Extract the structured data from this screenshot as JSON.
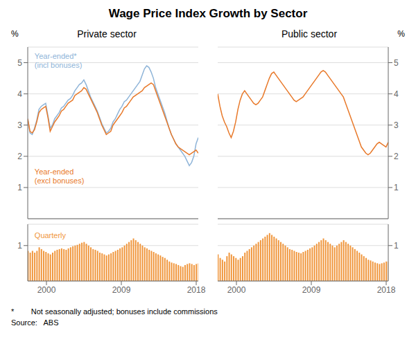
{
  "title": "Wage Price Index Growth by Sector",
  "annotations": [
    "*        Not seasonally adjusted; bonuses include commissions",
    "Source:   ABS"
  ],
  "chart_data": [
    {
      "type": "line",
      "title": "Private sector",
      "ylabel": "%",
      "x": [
        1997.75,
        1998.0197,
        1998.2895,
        1998.5592,
        1998.8289,
        1999.0987,
        1999.3684,
        1999.6382,
        1999.9079,
        2000.1776,
        2000.4474,
        2000.7171,
        2000.9868,
        2001.2566,
        2001.5263,
        2001.7961,
        2002.0658,
        2002.3355,
        2002.6053,
        2002.875,
        2003.1447,
        2003.4145,
        2003.6842,
        2003.9539,
        2004.2237,
        2004.4934,
        2004.7632,
        2005.0329,
        2005.3026,
        2005.5724,
        2005.8421,
        2006.1118,
        2006.3816,
        2006.6513,
        2006.9211,
        2007.1908,
        2007.4605,
        2007.7303,
        2008,
        2008.2697,
        2008.5395,
        2008.8092,
        2009.0789,
        2009.3487,
        2009.6184,
        2009.8882,
        2010.1579,
        2010.4276,
        2010.6974,
        2010.9671,
        2011.2368,
        2011.5066,
        2011.7763,
        2012.0461,
        2012.3158,
        2012.5855,
        2012.8553,
        2013.125,
        2013.3947,
        2013.6645,
        2013.9342,
        2014.2039,
        2014.4737,
        2014.7434,
        2015.0132,
        2015.2829,
        2015.5526,
        2015.8224,
        2016.0921,
        2016.3618,
        2016.6316,
        2016.9013,
        2017.1711,
        2017.4408,
        2017.7105,
        2017.9803,
        2018.25
      ],
      "series": [
        {
          "name": "Year-ended*\n(incl bonuses)",
          "color": "#8EB4D8",
          "values": [
            3.2,
            2.75,
            2.7,
            2.9,
            3.15,
            3.5,
            3.6,
            3.65,
            3.7,
            3.3,
            2.9,
            3.0,
            3.2,
            3.3,
            3.4,
            3.55,
            3.6,
            3.7,
            3.8,
            3.85,
            3.95,
            4.1,
            4.2,
            4.3,
            4.35,
            4.45,
            4.3,
            4.1,
            3.9,
            3.75,
            3.6,
            3.45,
            3.25,
            3.05,
            2.9,
            2.75,
            2.8,
            2.9,
            3.1,
            3.2,
            3.35,
            3.5,
            3.6,
            3.75,
            3.8,
            3.9,
            4.0,
            4.1,
            4.2,
            4.3,
            4.4,
            4.6,
            4.8,
            4.9,
            4.85,
            4.7,
            4.5,
            4.2,
            4.0,
            3.8,
            3.6,
            3.4,
            3.15,
            2.9,
            2.7,
            2.55,
            2.4,
            2.3,
            2.2,
            2.1,
            2.0,
            1.85,
            1.7,
            1.8,
            2.0,
            2.4,
            2.6
          ]
        },
        {
          "name": "Year-ended\n(excl bonuses)",
          "color": "#E8792A",
          "values": [
            3.2,
            2.8,
            2.75,
            2.85,
            3.1,
            3.4,
            3.5,
            3.55,
            3.6,
            3.25,
            2.8,
            2.95,
            3.1,
            3.2,
            3.3,
            3.45,
            3.5,
            3.6,
            3.7,
            3.75,
            3.8,
            3.95,
            4.0,
            4.05,
            4.1,
            4.2,
            4.15,
            4.0,
            3.85,
            3.7,
            3.55,
            3.4,
            3.2,
            3.0,
            2.85,
            2.7,
            2.75,
            2.8,
            3.0,
            3.1,
            3.2,
            3.3,
            3.4,
            3.55,
            3.6,
            3.7,
            3.8,
            3.9,
            3.95,
            4.0,
            4.05,
            4.1,
            4.2,
            4.25,
            4.3,
            4.35,
            4.3,
            4.1,
            3.9,
            3.7,
            3.5,
            3.3,
            3.1,
            2.9,
            2.7,
            2.55,
            2.4,
            2.3,
            2.25,
            2.2,
            2.15,
            2.1,
            2.05,
            2.1,
            2.15,
            2.2,
            2.1
          ]
        }
      ],
      "xlim": [
        1997.75,
        2018.25
      ],
      "ylim": [
        0,
        5.5
      ],
      "yticks": [
        1,
        2,
        3,
        4,
        5
      ],
      "grid": true,
      "tick_labels": "y"
    },
    {
      "type": "bar",
      "annotations": [
        "Quarterly"
      ],
      "color": "#F0963C",
      "x": [
        1997.75,
        1998.0197,
        1998.2895,
        1998.5592,
        1998.8289,
        1999.0987,
        1999.3684,
        1999.6382,
        1999.9079,
        2000.1776,
        2000.4474,
        2000.7171,
        2000.9868,
        2001.2566,
        2001.5263,
        2001.7961,
        2002.0658,
        2002.3355,
        2002.6053,
        2002.875,
        2003.1447,
        2003.4145,
        2003.6842,
        2003.9539,
        2004.2237,
        2004.4934,
        2004.7632,
        2005.0329,
        2005.3026,
        2005.5724,
        2005.8421,
        2006.1118,
        2006.3816,
        2006.6513,
        2006.9211,
        2007.1908,
        2007.4605,
        2007.7303,
        2008,
        2008.2697,
        2008.5395,
        2008.8092,
        2009.0789,
        2009.3487,
        2009.6184,
        2009.8882,
        2010.1579,
        2010.4276,
        2010.6974,
        2010.9671,
        2011.2368,
        2011.5066,
        2011.7763,
        2012.0461,
        2012.3158,
        2012.5855,
        2012.8553,
        2013.125,
        2013.3947,
        2013.6645,
        2013.9342,
        2014.2039,
        2014.4737,
        2014.7434,
        2015.0132,
        2015.2829,
        2015.5526,
        2015.8224,
        2016.0921,
        2016.3618,
        2016.6316,
        2016.9013,
        2017.1711,
        2017.4408,
        2017.7105,
        2017.9803,
        2018.25
      ],
      "values": [
        0.85,
        0.8,
        0.85,
        0.8,
        0.85,
        0.95,
        0.9,
        0.85,
        0.82,
        0.78,
        0.75,
        0.8,
        0.85,
        0.88,
        0.9,
        0.92,
        0.9,
        0.88,
        0.92,
        0.95,
        0.98,
        1.0,
        1.02,
        1.05,
        1.08,
        1.1,
        1.05,
        1.0,
        0.95,
        0.9,
        0.88,
        0.85,
        0.8,
        0.78,
        0.75,
        0.72,
        0.75,
        0.78,
        0.82,
        0.85,
        0.88,
        0.92,
        0.95,
        1.0,
        1.05,
        1.1,
        1.15,
        1.2,
        1.15,
        1.1,
        1.05,
        1.0,
        0.95,
        0.92,
        0.88,
        0.85,
        0.82,
        0.78,
        0.75,
        0.72,
        0.68,
        0.65,
        0.6,
        0.55,
        0.52,
        0.5,
        0.48,
        0.45,
        0.42,
        0.4,
        0.45,
        0.48,
        0.5,
        0.48,
        0.45,
        0.48,
        0.5
      ],
      "xlim": [
        1997.75,
        2018.25
      ],
      "xticks": [
        2000,
        2009,
        2018
      ],
      "ylim": [
        0,
        1.6
      ],
      "yticks": [
        1
      ],
      "grid": true
    },
    {
      "type": "line",
      "title": "Public sector",
      "ylabel": "%",
      "color": "#E8792A",
      "x": [
        1997.75,
        1998.0197,
        1998.2895,
        1998.5592,
        1998.8289,
        1999.0987,
        1999.3684,
        1999.6382,
        1999.9079,
        2000.1776,
        2000.4474,
        2000.7171,
        2000.9868,
        2001.2566,
        2001.5263,
        2001.7961,
        2002.0658,
        2002.3355,
        2002.6053,
        2002.875,
        2003.1447,
        2003.4145,
        2003.6842,
        2003.9539,
        2004.2237,
        2004.4934,
        2004.7632,
        2005.0329,
        2005.3026,
        2005.5724,
        2005.8421,
        2006.1118,
        2006.3816,
        2006.6513,
        2006.9211,
        2007.1908,
        2007.4605,
        2007.7303,
        2008,
        2008.2697,
        2008.5395,
        2008.8092,
        2009.0789,
        2009.3487,
        2009.6184,
        2009.8882,
        2010.1579,
        2010.4276,
        2010.6974,
        2010.9671,
        2011.2368,
        2011.5066,
        2011.7763,
        2012.0461,
        2012.3158,
        2012.5855,
        2012.8553,
        2013.125,
        2013.3947,
        2013.6645,
        2013.9342,
        2014.2039,
        2014.4737,
        2014.7434,
        2015.0132,
        2015.2829,
        2015.5526,
        2015.8224,
        2016.0921,
        2016.3618,
        2016.6316,
        2016.9013,
        2017.1711,
        2017.4408,
        2017.7105,
        2017.9803,
        2018.25
      ],
      "values": [
        4.0,
        3.6,
        3.3,
        3.1,
        2.95,
        2.75,
        2.6,
        2.8,
        3.1,
        3.5,
        3.8,
        4.0,
        4.1,
        4.0,
        3.9,
        3.8,
        3.7,
        3.65,
        3.7,
        3.8,
        3.9,
        4.1,
        4.3,
        4.5,
        4.65,
        4.7,
        4.6,
        4.5,
        4.4,
        4.3,
        4.2,
        4.1,
        4.0,
        3.9,
        3.8,
        3.75,
        3.8,
        3.85,
        3.9,
        4.0,
        4.1,
        4.2,
        4.3,
        4.4,
        4.5,
        4.6,
        4.7,
        4.75,
        4.7,
        4.6,
        4.5,
        4.4,
        4.3,
        4.2,
        4.1,
        4.0,
        3.9,
        3.7,
        3.5,
        3.3,
        3.1,
        2.9,
        2.7,
        2.5,
        2.3,
        2.2,
        2.1,
        2.05,
        2.1,
        2.2,
        2.3,
        2.4,
        2.45,
        2.4,
        2.35,
        2.3,
        2.45
      ],
      "xlim": [
        1997.75,
        2018.25
      ],
      "ylim": [
        0,
        5.5
      ],
      "yticks": [
        1,
        2,
        3,
        4,
        5
      ],
      "grid": true,
      "tick_labels": "y"
    },
    {
      "type": "bar",
      "color": "#F0963C",
      "x": [
        1997.75,
        1998.0197,
        1998.2895,
        1998.5592,
        1998.8289,
        1999.0987,
        1999.3684,
        1999.6382,
        1999.9079,
        2000.1776,
        2000.4474,
        2000.7171,
        2000.9868,
        2001.2566,
        2001.5263,
        2001.7961,
        2002.0658,
        2002.3355,
        2002.6053,
        2002.875,
        2003.1447,
        2003.4145,
        2003.6842,
        2003.9539,
        2004.2237,
        2004.4934,
        2004.7632,
        2005.0329,
        2005.3026,
        2005.5724,
        2005.8421,
        2006.1118,
        2006.3816,
        2006.6513,
        2006.9211,
        2007.1908,
        2007.4605,
        2007.7303,
        2008,
        2008.2697,
        2008.5395,
        2008.8092,
        2009.0789,
        2009.3487,
        2009.6184,
        2009.8882,
        2010.1579,
        2010.4276,
        2010.6974,
        2010.9671,
        2011.2368,
        2011.5066,
        2011.7763,
        2012.0461,
        2012.3158,
        2012.5855,
        2012.8553,
        2013.125,
        2013.3947,
        2013.6645,
        2013.9342,
        2014.2039,
        2014.4737,
        2014.7434,
        2015.0132,
        2015.2829,
        2015.5526,
        2015.8224,
        2016.0921,
        2016.3618,
        2016.6316,
        2016.9013,
        2017.1711,
        2017.4408,
        2017.7105,
        2017.9803,
        2018.25
      ],
      "values": [
        0.75,
        0.65,
        0.6,
        0.55,
        0.7,
        0.8,
        0.75,
        0.7,
        0.65,
        0.6,
        0.65,
        0.7,
        0.8,
        0.85,
        0.9,
        0.95,
        1.0,
        1.05,
        1.1,
        1.15,
        1.2,
        1.25,
        1.3,
        1.35,
        1.3,
        1.25,
        1.2,
        1.15,
        1.1,
        1.05,
        1.0,
        0.95,
        0.9,
        0.88,
        0.85,
        0.82,
        0.8,
        0.78,
        0.82,
        0.85,
        0.88,
        0.92,
        0.95,
        1.0,
        1.05,
        1.1,
        1.15,
        1.2,
        1.15,
        1.1,
        1.05,
        1.0,
        0.95,
        1.0,
        1.05,
        1.1,
        1.15,
        1.1,
        1.05,
        1.0,
        0.95,
        0.9,
        0.85,
        0.8,
        0.75,
        0.7,
        0.65,
        0.6,
        0.58,
        0.55,
        0.52,
        0.5,
        0.48,
        0.5,
        0.52,
        0.55,
        0.55
      ],
      "xlim": [
        1997.75,
        2018.25
      ],
      "xticks": [
        2000,
        2009,
        2018
      ],
      "ylim": [
        0,
        1.6
      ],
      "yticks": [
        1
      ],
      "grid": true
    }
  ]
}
